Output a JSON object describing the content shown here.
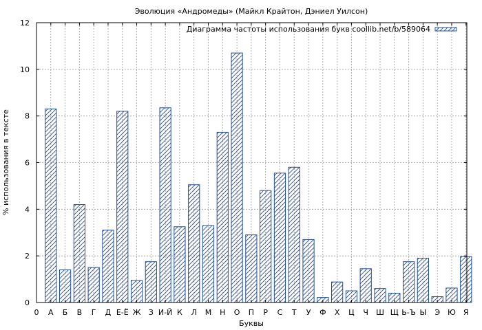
{
  "chart_data": {
    "type": "bar",
    "title": "Эволюция «Андромеды» (Майкл Крайтон, Дэниел Уилсон)",
    "xlabel": "Буквы",
    "ylabel": "% использования в тексте",
    "ylim": [
      0,
      12
    ],
    "y_ticks": [
      "0",
      "2",
      "4",
      "6",
      "8",
      "10",
      "12"
    ],
    "x_start_label": "0",
    "categories": [
      "А",
      "Б",
      "В",
      "Г",
      "Д",
      "Е-Ё",
      "Ж",
      "З",
      "И-Й",
      "К",
      "Л",
      "М",
      "Н",
      "О",
      "П",
      "Р",
      "С",
      "Т",
      "У",
      "Ф",
      "Х",
      "Ц",
      "Ч",
      "Ш",
      "Щ",
      "Ь-Ъ",
      "Ы",
      "Э",
      "Ю",
      "Я"
    ],
    "series": [
      {
        "name": "Диаграмма частоты использования букв coollib.net/b/589064",
        "values": [
          8.3,
          1.4,
          4.2,
          1.5,
          3.1,
          8.2,
          0.95,
          1.75,
          8.35,
          3.25,
          5.05,
          3.3,
          7.3,
          10.7,
          2.9,
          4.8,
          5.55,
          5.8,
          2.7,
          0.22,
          0.88,
          0.5,
          1.45,
          0.6,
          0.4,
          1.75,
          1.9,
          0.25,
          0.62,
          1.97
        ]
      }
    ],
    "grid": true,
    "legend": "top-right",
    "colors": {
      "bar_stroke": "#1f4e9e",
      "grid": "#9a9a9a",
      "axis": "#000000"
    }
  }
}
